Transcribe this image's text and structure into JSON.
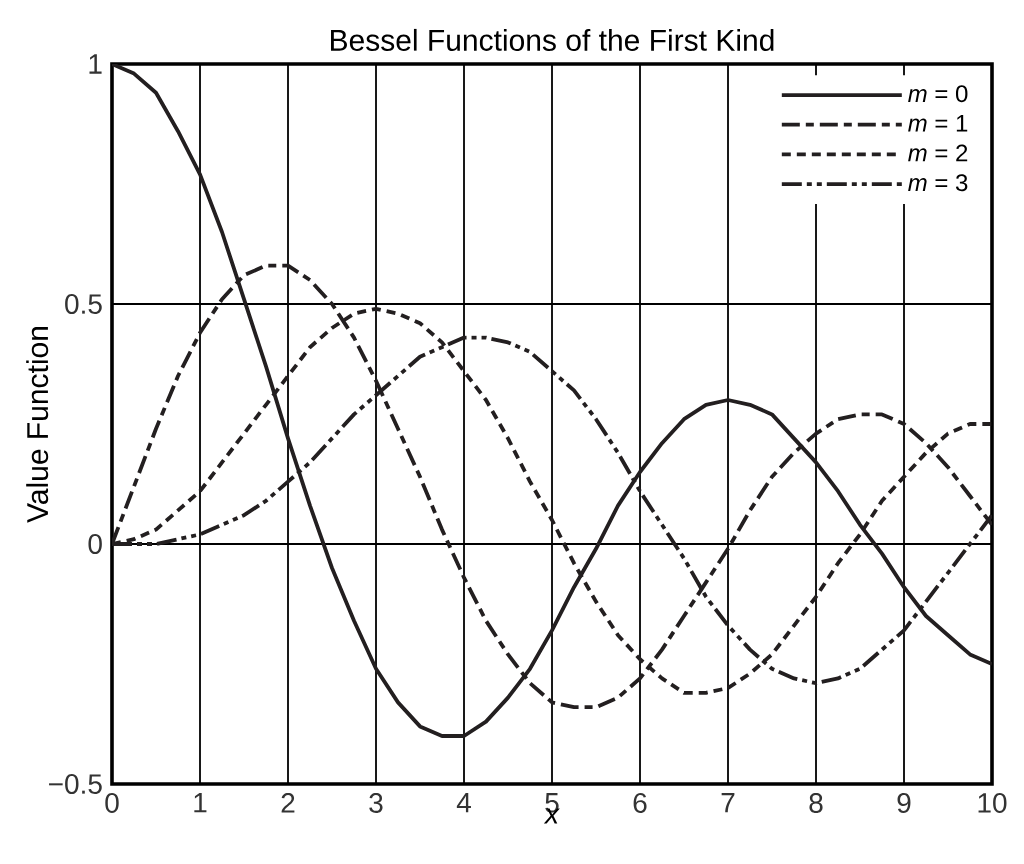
{
  "chart_data": {
    "type": "line",
    "title": "Bessel Functions of the First Kind",
    "xlabel": "x",
    "ylabel": "Value Function",
    "x": [
      0,
      0.25,
      0.5,
      0.75,
      1,
      1.25,
      1.5,
      1.75,
      2,
      2.25,
      2.5,
      2.75,
      3,
      3.25,
      3.5,
      3.75,
      4,
      4.25,
      4.5,
      4.75,
      5,
      5.25,
      5.5,
      5.75,
      6,
      6.25,
      6.5,
      6.75,
      7,
      7.25,
      7.5,
      7.75,
      8,
      8.25,
      8.5,
      8.75,
      9,
      9.25,
      9.5,
      9.75,
      10
    ],
    "series": [
      {
        "name": "*m* = 0",
        "color": "#231f20",
        "line_style": "solid",
        "values": [
          1.0,
          0.98,
          0.94,
          0.86,
          0.77,
          0.65,
          0.51,
          0.37,
          0.22,
          0.08,
          -0.05,
          -0.16,
          -0.26,
          -0.33,
          -0.38,
          -0.4,
          -0.4,
          -0.37,
          -0.32,
          -0.26,
          -0.18,
          -0.09,
          -0.01,
          0.08,
          0.15,
          0.21,
          0.26,
          0.29,
          0.3,
          0.29,
          0.27,
          0.22,
          0.17,
          0.11,
          0.04,
          -0.02,
          -0.09,
          -0.15,
          -0.19,
          -0.23,
          -0.25
        ]
      },
      {
        "name": "*m* = 1",
        "color": "#231f20",
        "line_style": "dashdot",
        "values": [
          0.0,
          0.12,
          0.24,
          0.35,
          0.44,
          0.51,
          0.56,
          0.58,
          0.58,
          0.55,
          0.5,
          0.43,
          0.34,
          0.24,
          0.14,
          0.03,
          -0.07,
          -0.16,
          -0.23,
          -0.29,
          -0.33,
          -0.34,
          -0.34,
          -0.32,
          -0.28,
          -0.22,
          -0.15,
          -0.08,
          -0.01,
          0.07,
          0.14,
          0.19,
          0.23,
          0.26,
          0.27,
          0.27,
          0.25,
          0.21,
          0.16,
          0.1,
          0.04
        ]
      },
      {
        "name": "*m* = 2",
        "color": "#231f20",
        "line_style": "dashed",
        "values": [
          0.0,
          0.01,
          0.03,
          0.07,
          0.11,
          0.17,
          0.23,
          0.29,
          0.35,
          0.41,
          0.45,
          0.48,
          0.49,
          0.48,
          0.46,
          0.42,
          0.36,
          0.3,
          0.22,
          0.13,
          0.05,
          -0.04,
          -0.12,
          -0.19,
          -0.24,
          -0.28,
          -0.31,
          -0.31,
          -0.3,
          -0.27,
          -0.23,
          -0.17,
          -0.11,
          -0.04,
          0.02,
          0.09,
          0.14,
          0.19,
          0.23,
          0.25,
          0.25
        ]
      },
      {
        "name": "*m* = 3",
        "color": "#231f20",
        "line_style": "dashdotdot",
        "values": [
          0.0,
          0.0,
          0.0,
          0.01,
          0.02,
          0.04,
          0.06,
          0.09,
          0.13,
          0.17,
          0.22,
          0.27,
          0.31,
          0.35,
          0.39,
          0.41,
          0.43,
          0.43,
          0.42,
          0.4,
          0.36,
          0.32,
          0.26,
          0.19,
          0.11,
          0.04,
          -0.03,
          -0.11,
          -0.17,
          -0.22,
          -0.26,
          -0.28,
          -0.29,
          -0.28,
          -0.26,
          -0.22,
          -0.18,
          -0.12,
          -0.06,
          0.0,
          0.06
        ]
      }
    ],
    "xlim": [
      0,
      10
    ],
    "ylim": [
      -0.5,
      1
    ],
    "xticks": [
      0,
      1,
      2,
      3,
      4,
      5,
      6,
      7,
      8,
      9,
      10
    ],
    "yticks": [
      {
        "value": -0.5,
        "label": "−0.5"
      },
      0,
      0.5,
      1
    ],
    "grid": true,
    "legend": "top right",
    "marker": "none"
  }
}
